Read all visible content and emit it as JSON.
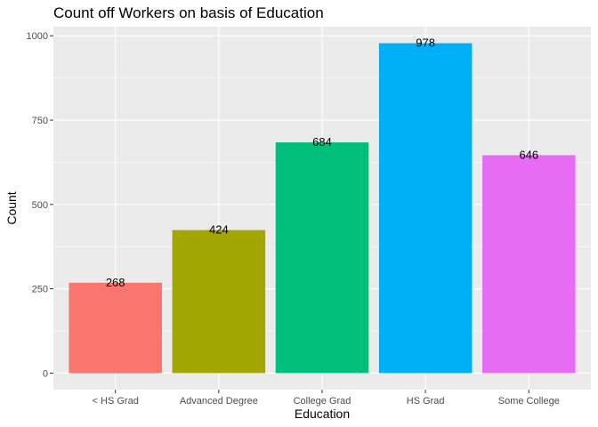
{
  "chart_data": {
    "type": "bar",
    "title": "Count off Workers on basis of Education",
    "xlabel": "Education",
    "ylabel": "Count",
    "categories": [
      "< HS Grad",
      "Advanced Degree",
      "College Grad",
      "HS Grad",
      "Some College"
    ],
    "values": [
      268,
      424,
      684,
      978,
      646
    ],
    "data_labels": [
      "268",
      "424",
      "684",
      "978",
      "646"
    ],
    "colors": [
      "#F8766D",
      "#A3A500",
      "#00BF7D",
      "#00B0F6",
      "#E76BF3"
    ],
    "yticks": [
      0,
      250,
      500,
      750,
      1000
    ],
    "ytick_labels": [
      "0",
      "250",
      "500",
      "750",
      "1000"
    ],
    "ylim": [
      -49,
      1027
    ],
    "grid": true,
    "legend": "none",
    "panel_background": "#EBEBEB"
  }
}
